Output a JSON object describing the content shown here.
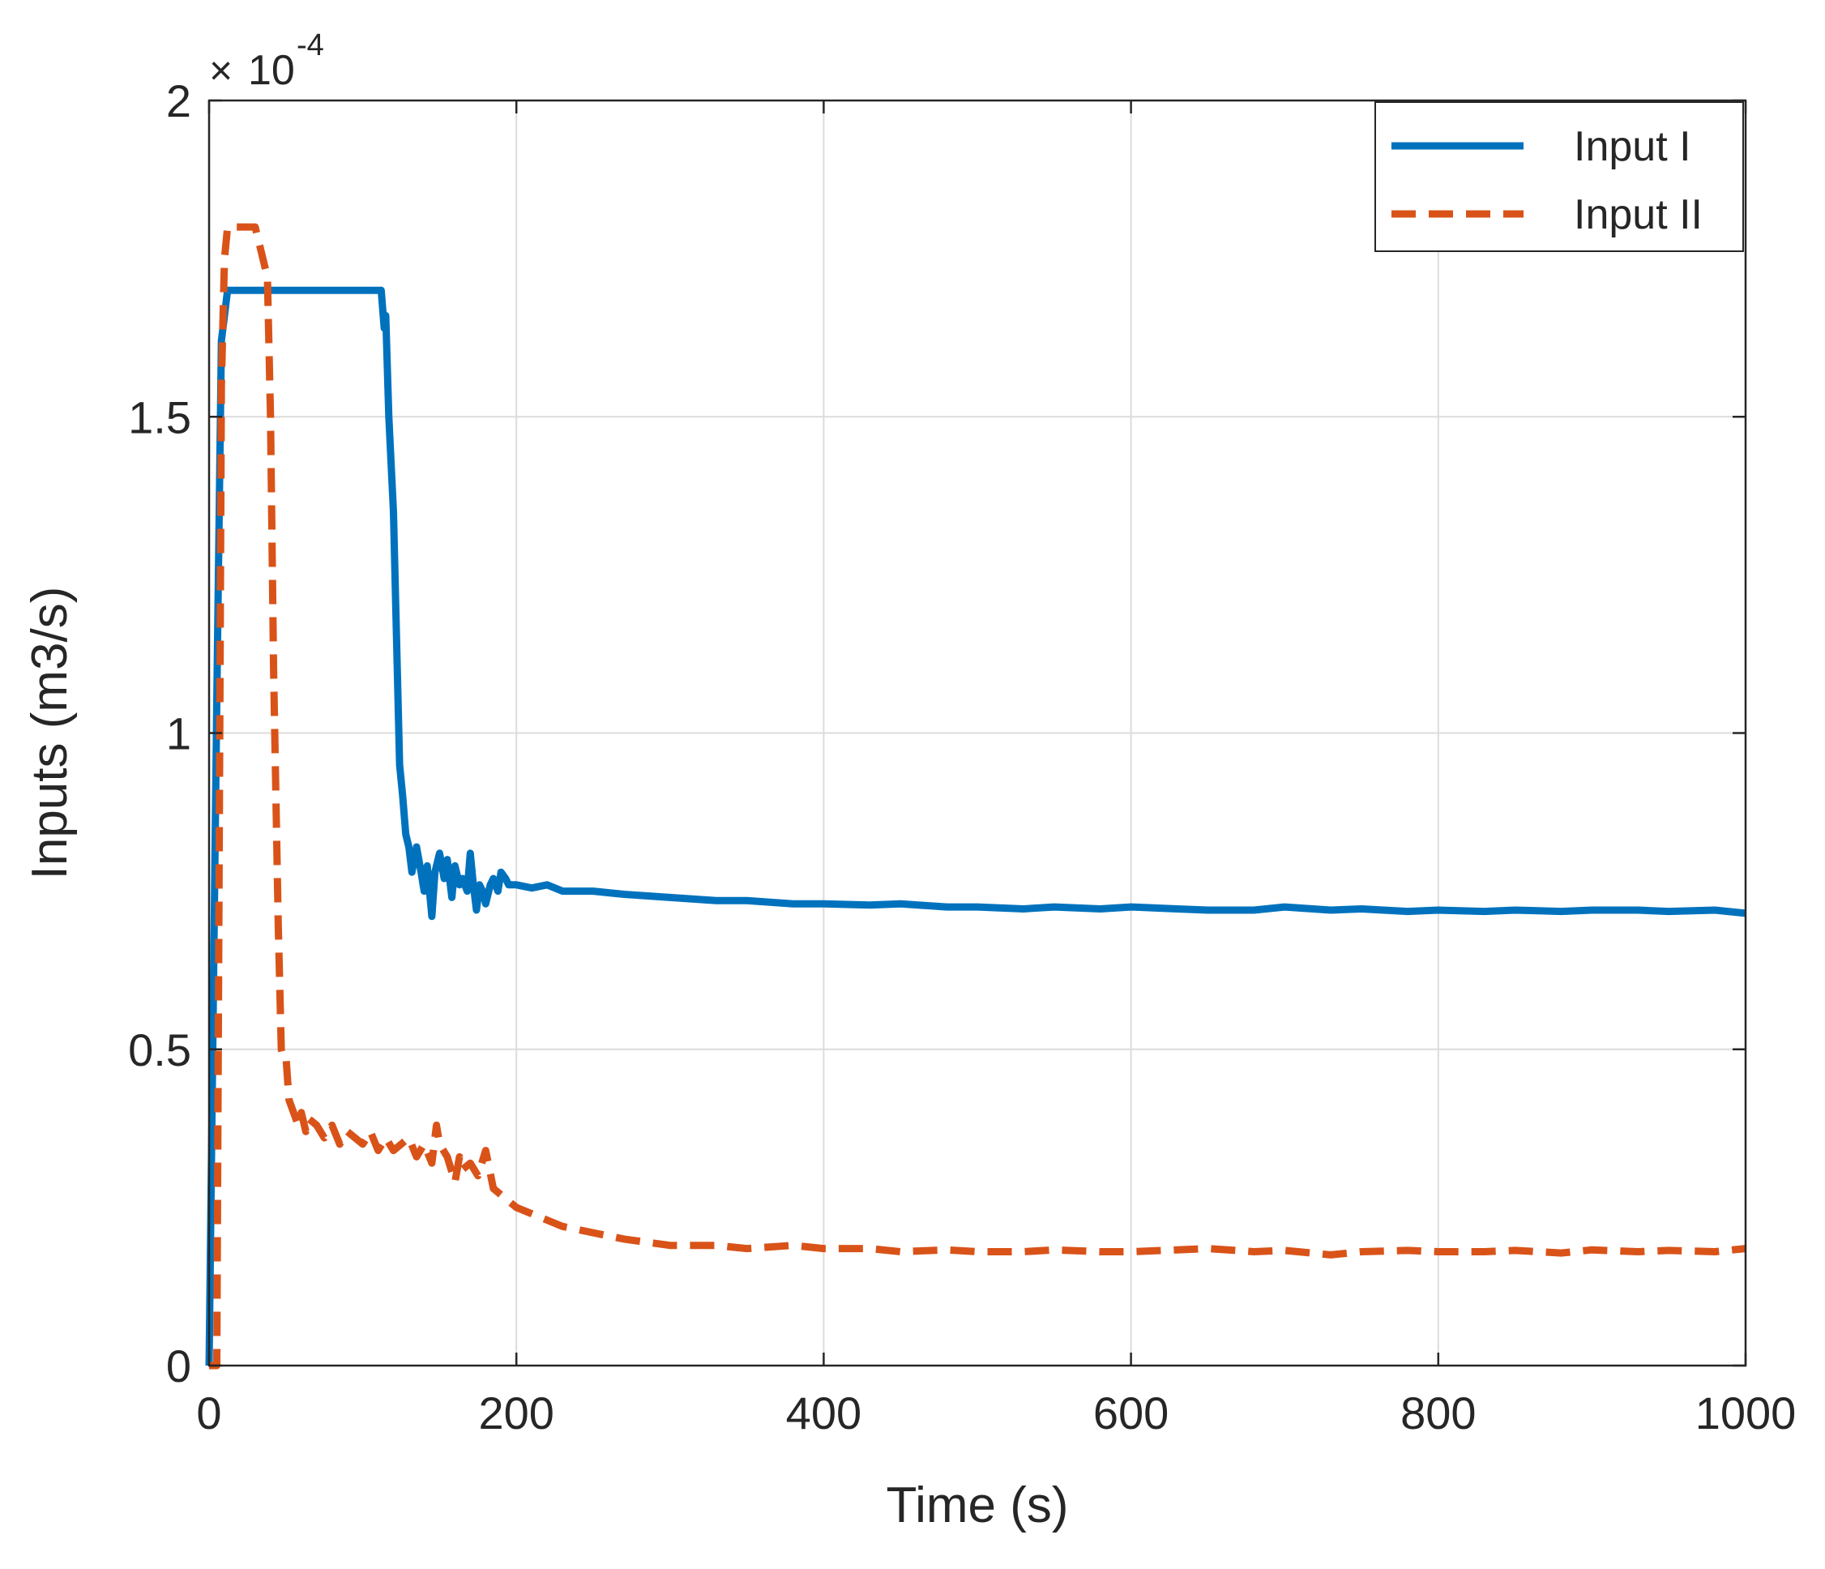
{
  "chart_data": {
    "type": "line",
    "title": "",
    "xlabel": "Time (s)",
    "ylabel": "Inputs (m3/s)",
    "y_multiplier_base": "10",
    "y_multiplier_exp": "-4",
    "xlim": [
      0,
      1000
    ],
    "ylim": [
      0,
      2
    ],
    "xticks": [
      0,
      200,
      400,
      600,
      800,
      1000
    ],
    "yticks": [
      0,
      0.5,
      1,
      1.5,
      2
    ],
    "xtick_labels": [
      "0",
      "200",
      "400",
      "600",
      "800",
      "1000"
    ],
    "ytick_labels": [
      "0",
      "0.5",
      "1",
      "1.5",
      "2"
    ],
    "grid": true,
    "legend_position": "top-right",
    "series": [
      {
        "name": "Input I",
        "color": "#0072BD",
        "style": "solid",
        "x": [
          0,
          5,
          8,
          12,
          20,
          50,
          80,
          110,
          112,
          114,
          115,
          117,
          120,
          122,
          124,
          126,
          128,
          130,
          132,
          135,
          138,
          140,
          142,
          145,
          147,
          150,
          153,
          155,
          158,
          160,
          163,
          165,
          168,
          170,
          172,
          174,
          176,
          178,
          180,
          183,
          185,
          188,
          190,
          193,
          195,
          200,
          210,
          220,
          230,
          250,
          270,
          300,
          330,
          350,
          380,
          400,
          430,
          450,
          480,
          500,
          530,
          550,
          580,
          600,
          630,
          650,
          680,
          700,
          730,
          750,
          780,
          800,
          830,
          850,
          880,
          900,
          930,
          950,
          980,
          1000
        ],
        "values": [
          0,
          1.05,
          1.62,
          1.7,
          1.7,
          1.7,
          1.7,
          1.7,
          1.7,
          1.64,
          1.66,
          1.5,
          1.35,
          1.15,
          0.95,
          0.9,
          0.84,
          0.82,
          0.78,
          0.82,
          0.78,
          0.75,
          0.79,
          0.71,
          0.78,
          0.81,
          0.77,
          0.8,
          0.74,
          0.79,
          0.76,
          0.77,
          0.75,
          0.81,
          0.76,
          0.72,
          0.76,
          0.75,
          0.73,
          0.76,
          0.77,
          0.75,
          0.78,
          0.77,
          0.76,
          0.76,
          0.755,
          0.76,
          0.75,
          0.75,
          0.745,
          0.74,
          0.735,
          0.735,
          0.73,
          0.73,
          0.728,
          0.73,
          0.725,
          0.725,
          0.722,
          0.725,
          0.722,
          0.725,
          0.722,
          0.72,
          0.72,
          0.725,
          0.72,
          0.722,
          0.718,
          0.72,
          0.718,
          0.72,
          0.718,
          0.72,
          0.72,
          0.718,
          0.72,
          0.715
        ]
      },
      {
        "name": "Input II",
        "color": "#D95319",
        "style": "dashed",
        "x": [
          0,
          5,
          8,
          10,
          12,
          15,
          20,
          30,
          35,
          38,
          40,
          42,
          45,
          47,
          48,
          50,
          52,
          55,
          58,
          60,
          63,
          65,
          70,
          75,
          80,
          85,
          90,
          95,
          100,
          105,
          110,
          115,
          120,
          125,
          130,
          135,
          140,
          145,
          148,
          150,
          155,
          160,
          163,
          165,
          170,
          175,
          180,
          185,
          190,
          200,
          210,
          220,
          230,
          250,
          270,
          300,
          330,
          350,
          380,
          400,
          430,
          450,
          480,
          500,
          530,
          550,
          580,
          600,
          630,
          650,
          680,
          700,
          730,
          750,
          780,
          800,
          830,
          850,
          880,
          900,
          930,
          950,
          980,
          1000
        ],
        "values": [
          0,
          0,
          1.55,
          1.75,
          1.8,
          1.8,
          1.8,
          1.8,
          1.75,
          1.72,
          1.5,
          1.1,
          0.7,
          0.5,
          0.49,
          0.49,
          0.42,
          0.4,
          0.38,
          0.4,
          0.37,
          0.39,
          0.38,
          0.36,
          0.38,
          0.35,
          0.37,
          0.36,
          0.35,
          0.37,
          0.34,
          0.36,
          0.34,
          0.35,
          0.36,
          0.33,
          0.35,
          0.32,
          0.38,
          0.35,
          0.33,
          0.29,
          0.33,
          0.31,
          0.32,
          0.3,
          0.34,
          0.28,
          0.27,
          0.25,
          0.24,
          0.23,
          0.22,
          0.21,
          0.2,
          0.19,
          0.19,
          0.185,
          0.19,
          0.185,
          0.185,
          0.18,
          0.183,
          0.18,
          0.18,
          0.183,
          0.18,
          0.18,
          0.183,
          0.185,
          0.18,
          0.182,
          0.175,
          0.18,
          0.182,
          0.18,
          0.18,
          0.182,
          0.178,
          0.183,
          0.18,
          0.182,
          0.18,
          0.185
        ]
      }
    ]
  }
}
